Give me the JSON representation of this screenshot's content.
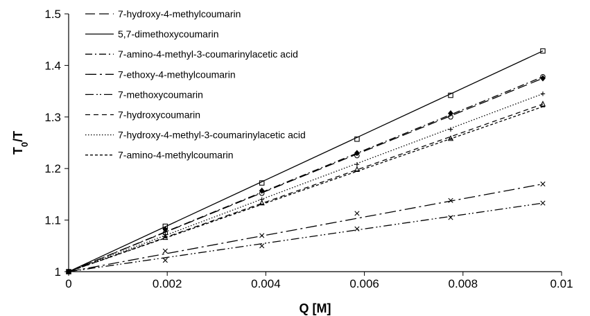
{
  "chart_data": {
    "type": "line",
    "xlabel": "Q [M]",
    "ylabel": {
      "main": "T",
      "sub": "0",
      "rest": "/T"
    },
    "xlim": [
      0,
      0.01
    ],
    "ylim": [
      1,
      1.5
    ],
    "x_ticks": [
      "0",
      "0.002",
      "0.004",
      "0.006",
      "0.008",
      "0.01"
    ],
    "x_tick_values": [
      0,
      0.002,
      0.004,
      0.006,
      0.008,
      0.01
    ],
    "y_ticks": [
      "1",
      "1.1",
      "1.2",
      "1.3",
      "1.4",
      "1.5"
    ],
    "y_tick_values": [
      1,
      1.1,
      1.2,
      1.3,
      1.4,
      1.5
    ],
    "grid": false,
    "legend_position": "top-left",
    "x": [
      0,
      0.00196,
      0.00392,
      0.00585,
      0.00775,
      0.00962
    ],
    "series": [
      {
        "name": "7-hydroxy-4-methylcoumarin",
        "dash": "14,6",
        "marker": "diamond",
        "values": [
          1,
          1.082,
          1.157,
          1.23,
          1.307,
          1.375
        ]
      },
      {
        "name": "5,7-dimethoxycoumarin",
        "dash": "",
        "marker": "square",
        "values": [
          1,
          1.088,
          1.172,
          1.257,
          1.342,
          1.428
        ]
      },
      {
        "name": "7-amino-4-methyl-3-coumarinylacetic acid",
        "dash": "10,4,2,4",
        "marker": "circle",
        "values": [
          1,
          1.075,
          1.152,
          1.225,
          1.3,
          1.378
        ]
      },
      {
        "name": "7-ethoxy-4-methylcoumarin",
        "dash": "16,5,3,5",
        "marker": "x",
        "values": [
          1,
          1.04,
          1.07,
          1.113,
          1.138,
          1.17
        ]
      },
      {
        "name": "7-methoxycoumarin",
        "dash": "12,4,2,3,2,4",
        "marker": "x",
        "values": [
          1,
          1.022,
          1.05,
          1.083,
          1.105,
          1.133
        ]
      },
      {
        "name": "7-hydroxycoumarin",
        "dash": "7,5",
        "marker": "triangle",
        "values": [
          1,
          1.066,
          1.133,
          1.198,
          1.258,
          1.325
        ]
      },
      {
        "name": "7-hydroxy-4-methyl-3-coumarinylacetic acid",
        "dash": "1.5,2.5",
        "marker": "plus",
        "values": [
          1,
          1.072,
          1.14,
          1.208,
          1.276,
          1.345
        ]
      },
      {
        "name": "7-amino-4-methylcoumarin",
        "dash": "4,3",
        "marker": "dash",
        "values": [
          1,
          1.068,
          1.13,
          1.195,
          1.257,
          1.32
        ]
      }
    ]
  }
}
